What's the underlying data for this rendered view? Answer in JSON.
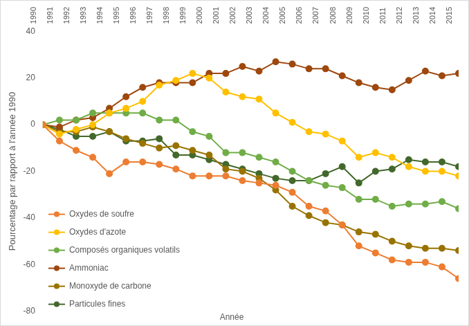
{
  "chart_data": {
    "type": "line",
    "x_label": "Année",
    "y_label": "Pourcentage par rapport à l'année 1990",
    "categories": [
      "1990",
      "1991",
      "1992",
      "1993",
      "1994",
      "1995",
      "1996",
      "1997",
      "1998",
      "1999",
      "2000",
      "2001",
      "2002",
      "2003",
      "2004",
      "2005",
      "2006",
      "2007",
      "2008",
      "2009",
      "2010",
      "2011",
      "2012",
      "2013",
      "2014",
      "2015"
    ],
    "series": [
      {
        "name": "Oxydes de soufre",
        "color": "#ED7D31",
        "values": [
          0,
          -7,
          -11,
          -14,
          -21,
          -16,
          -16,
          -17,
          -19,
          -22,
          -22,
          -22,
          -24,
          -25,
          -26,
          -29,
          -35,
          -37,
          -43,
          -52,
          -55,
          -58,
          -59,
          -59,
          -61,
          -66
        ]
      },
      {
        "name": "Oxydes d'azote",
        "color": "#FFC000",
        "values": [
          0,
          -4,
          -2,
          0,
          5,
          7,
          10,
          17,
          19,
          22,
          20,
          14,
          12,
          11,
          5,
          1,
          -3,
          -4,
          -7,
          -14,
          -12,
          -14,
          -18,
          -20,
          -20,
          -22
        ]
      },
      {
        "name": "Composés organiques volatils",
        "color": "#70AD47",
        "values": [
          0,
          2,
          2,
          5,
          5,
          5,
          5,
          2,
          2,
          -3,
          -5,
          -12,
          -12,
          -14,
          -16,
          -20,
          -24,
          -26,
          -27,
          -32,
          -32,
          -35,
          -34,
          -34,
          -33,
          -36
        ]
      },
      {
        "name": "Ammoniac",
        "color": "#9E480E",
        "values": [
          0,
          -1,
          2,
          3,
          7,
          12,
          16,
          18,
          18,
          18,
          22,
          22,
          25,
          23,
          27,
          26,
          24,
          24,
          21,
          18,
          16,
          15,
          19,
          23,
          21,
          22
        ]
      },
      {
        "name": "Monoxyde de carbone",
        "color": "#997300",
        "values": [
          0,
          -3,
          -3,
          -1,
          -3,
          -6,
          -8,
          -10,
          -9,
          -11,
          -13,
          -19,
          -20,
          -23,
          -28,
          -35,
          -39,
          -42,
          -43,
          -46,
          -47,
          -50,
          -52,
          -53,
          -53,
          -54
        ]
      },
      {
        "name": "Particules fines",
        "color": "#43682B",
        "values": [
          0,
          -2,
          -5,
          -5,
          -3,
          -7,
          -7,
          -6,
          -13,
          -13,
          -15,
          -17,
          -19,
          -21,
          -23,
          -24,
          -24,
          -21,
          -18,
          -25,
          -20,
          -19,
          -15,
          -16,
          -16,
          -18
        ]
      }
    ],
    "ylim": [
      -80,
      40
    ],
    "yticks": [
      -80,
      -60,
      -40,
      -20,
      0,
      20,
      40
    ],
    "grid": false,
    "legend": "lower left",
    "marker": "circle"
  }
}
